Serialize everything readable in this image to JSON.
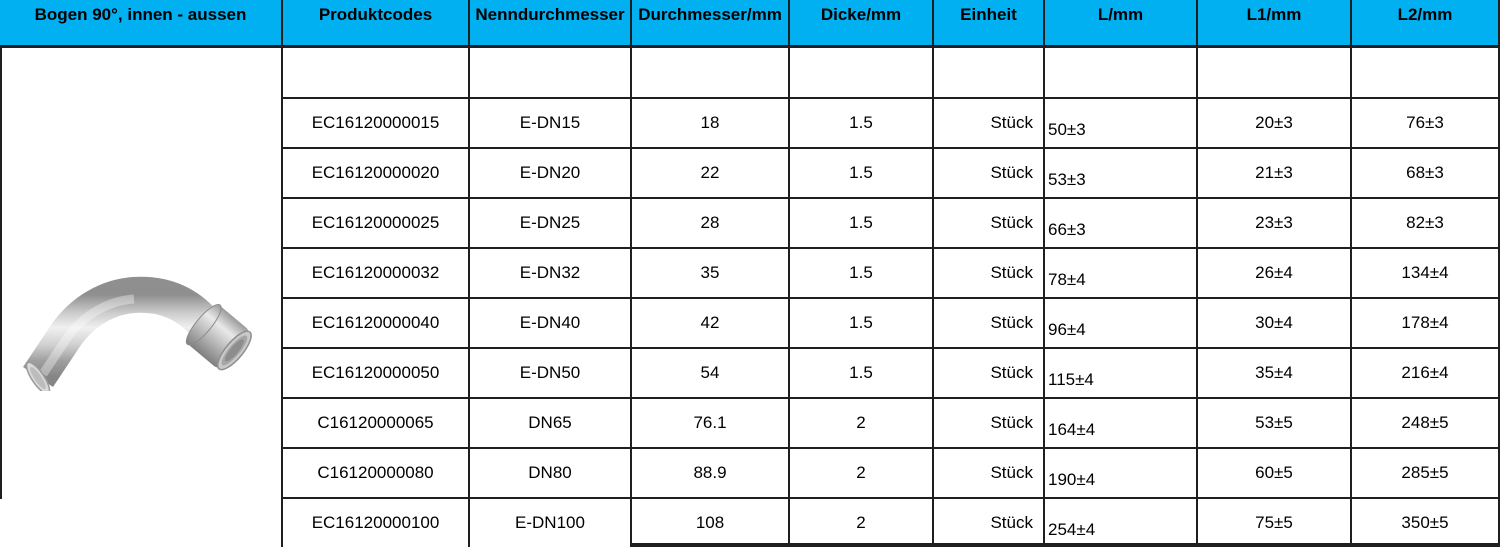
{
  "header": {
    "title": "Bogen 90°, innen - aussen",
    "columns": [
      "Produktcodes",
      "Nenndurchmesser",
      "Durchmesser/mm",
      "Dicke/mm",
      "Einheit",
      "L/mm",
      "L1/mm",
      "L2/mm"
    ]
  },
  "rows": [
    [
      "EC16120000015",
      "E-DN15",
      "18",
      "1.5",
      "Stück",
      "50±3",
      "20±3",
      "76±3"
    ],
    [
      "EC16120000020",
      "E-DN20",
      "22",
      "1.5",
      "Stück",
      "53±3",
      "21±3",
      "68±3"
    ],
    [
      "EC16120000025",
      "E-DN25",
      "28",
      "1.5",
      "Stück",
      "66±3",
      "23±3",
      "82±3"
    ],
    [
      "EC16120000032",
      "E-DN32",
      "35",
      "1.5",
      "Stück",
      "78±4",
      "26±4",
      "134±4"
    ],
    [
      "EC16120000040",
      "E-DN40",
      "42",
      "1.5",
      "Stück",
      "96±4",
      "30±4",
      "178±4"
    ],
    [
      "EC16120000050",
      "E-DN50",
      "54",
      "1.5",
      "Stück",
      "115±4",
      "35±4",
      "216±4"
    ],
    [
      "C16120000065",
      "DN65",
      "76.1",
      "2",
      "Stück",
      "164±4",
      "53±5",
      "248±5"
    ],
    [
      "C16120000080",
      "DN80",
      "88.9",
      "2",
      "Stück",
      "190±4",
      "60±5",
      "285±5"
    ],
    [
      "EC16120000100",
      "E-DN100",
      "108",
      "2",
      "Stück",
      "254±4",
      "75±5",
      "350±5"
    ]
  ],
  "image": {
    "name": "elbow-90-press-fitting-photo"
  },
  "colors": {
    "header_bg": "#00b0f0",
    "border": "#1f1f1f"
  }
}
